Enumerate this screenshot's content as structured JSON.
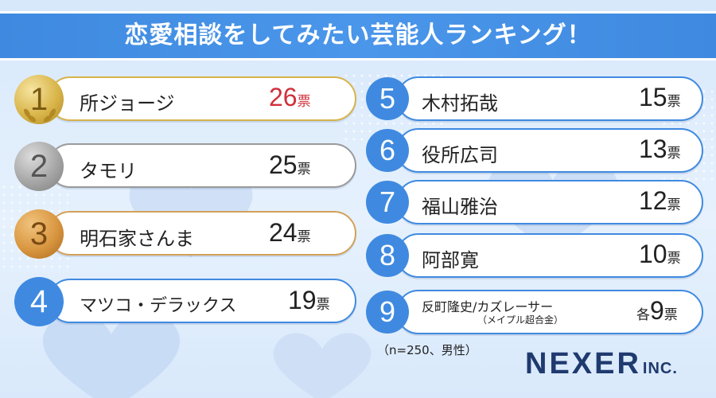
{
  "title": "恋愛相談をしてみたい芸能人ランキング！",
  "ranking": [
    {
      "rank": "1",
      "name": "所ジョージ",
      "votes": "26",
      "unit": "票",
      "medal": "gold",
      "highlight_color": "#d0303a"
    },
    {
      "rank": "2",
      "name": "タモリ",
      "votes": "25",
      "unit": "票",
      "medal": "silver"
    },
    {
      "rank": "3",
      "name": "明石家さんま",
      "votes": "24",
      "unit": "票",
      "medal": "bronze"
    },
    {
      "rank": "4",
      "name": "マツコ・デラックス",
      "votes": "19",
      "unit": "票",
      "medal": "blue"
    },
    {
      "rank": "5",
      "name": "木村拓哉",
      "votes": "15",
      "unit": "票",
      "medal": "blue"
    },
    {
      "rank": "6",
      "name": "役所広司",
      "votes": "13",
      "unit": "票",
      "medal": "blue"
    },
    {
      "rank": "7",
      "name": "福山雅治",
      "votes": "12",
      "unit": "票",
      "medal": "blue"
    },
    {
      "rank": "8",
      "name": "阿部寛",
      "votes": "10",
      "unit": "票",
      "medal": "blue"
    },
    {
      "rank": "9",
      "name": "反町隆史/カズレーサー",
      "name_sub": "（メイプル超合金）",
      "prefix": "各",
      "votes": "9",
      "unit": "票",
      "medal": "blue"
    }
  ],
  "note": "（n=250、男性）",
  "brand": {
    "name": "NEXER",
    "suffix": "INC."
  },
  "colors": {
    "header": "#3f8ae0",
    "accent_blue": "#3f8ae0",
    "accent_red": "#d0303a",
    "brand": "#1f3a6e"
  }
}
